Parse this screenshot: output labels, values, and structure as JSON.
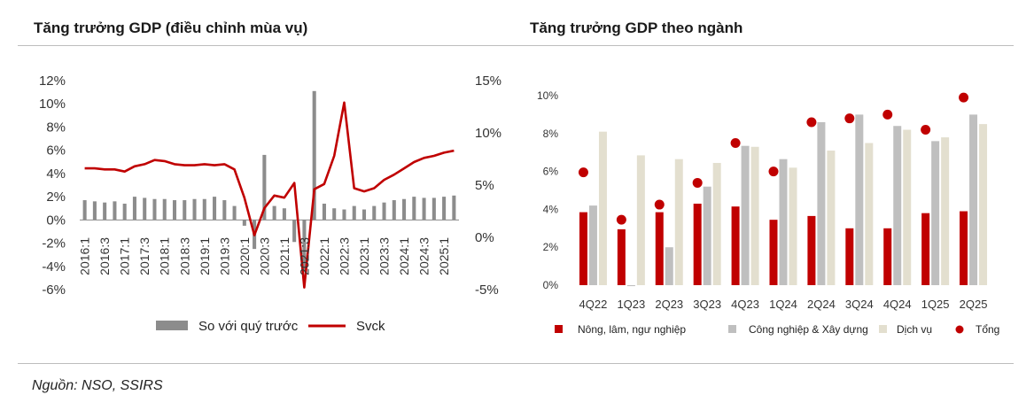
{
  "titles": {
    "left": "Tăng trưởng GDP (điều chỉnh mùa vụ)",
    "right": "Tăng trưởng GDP theo ngành"
  },
  "source": "Nguồn: NSO, SSIRS",
  "colors": {
    "bar_gray": "#8c8c8c",
    "line_red": "#c00000",
    "ag": "#c00000",
    "ind": "#bfbfbf",
    "svc": "#e3dfcf",
    "total": "#c00000"
  },
  "chart_data": [
    {
      "type": "bar+line",
      "categories": [
        "2016:1",
        "2016:2",
        "2016:3",
        "2016:4",
        "2017:1",
        "2017:2",
        "2017:3",
        "2017:4",
        "2018:1",
        "2018:2",
        "2018:3",
        "2018:4",
        "2019:1",
        "2019:2",
        "2019:3",
        "2019:4",
        "2020:1",
        "2020:2",
        "2020:3",
        "2020:4",
        "2021:1",
        "2021:2",
        "2021:3",
        "2021:4",
        "2022:1",
        "2022:2",
        "2022:3",
        "2022:4",
        "2023:1",
        "2023:2",
        "2023:3",
        "2023:4",
        "2024:1",
        "2024:2",
        "2024:3",
        "2024:4",
        "2025:1",
        "2025:2"
      ],
      "tick_labels": [
        "2016:1",
        "2016:3",
        "2017:1",
        "2017:3",
        "2018:1",
        "2018:3",
        "2019:1",
        "2019:3",
        "2020:1",
        "2020:3",
        "2021:1",
        "2021:3",
        "2022:1",
        "2022:3",
        "2023:1",
        "2023:3",
        "2024:1",
        "2024:3",
        "2025:1"
      ],
      "series": [
        {
          "name": "So với quý trước",
          "type": "bar",
          "axis": "left",
          "values": [
            1.7,
            1.6,
            1.5,
            1.6,
            1.4,
            2.0,
            1.9,
            1.8,
            1.8,
            1.7,
            1.7,
            1.8,
            1.8,
            2.0,
            1.7,
            1.2,
            -0.5,
            -2.5,
            5.6,
            1.2,
            1.0,
            -1.9,
            -4.5,
            11.1,
            1.4,
            1.0,
            0.9,
            1.2,
            0.9,
            1.2,
            1.5,
            1.7,
            1.8,
            2.0,
            1.9,
            1.9,
            2.0,
            2.1
          ]
        },
        {
          "name": "Svck",
          "type": "line",
          "axis": "right",
          "values": [
            6.6,
            6.6,
            6.5,
            6.5,
            6.3,
            6.8,
            7.0,
            7.4,
            7.3,
            7.0,
            6.9,
            6.9,
            7.0,
            6.9,
            7.0,
            6.5,
            3.8,
            0.2,
            2.8,
            4.0,
            3.8,
            5.2,
            -4.8,
            4.6,
            5.1,
            7.8,
            12.9,
            4.7,
            4.4,
            4.7,
            5.5,
            6.0,
            6.6,
            7.2,
            7.6,
            7.8,
            8.1,
            8.3
          ]
        }
      ],
      "ylim_left": [
        -6,
        12
      ],
      "yticks_left": [
        "12%",
        "10%",
        "8%",
        "6%",
        "4%",
        "2%",
        "0%",
        "-2%",
        "-4%",
        "-6%"
      ],
      "ylim_right": [
        -5,
        15
      ],
      "yticks_right": [
        "15%",
        "10%",
        "5%",
        "0%",
        "-5%"
      ],
      "legend": [
        "So với quý trước",
        "Svck"
      ],
      "legend_position": "bottom"
    },
    {
      "type": "bar",
      "categories": [
        "4Q22",
        "1Q23",
        "2Q23",
        "3Q23",
        "4Q23",
        "1Q24",
        "2Q24",
        "3Q24",
        "4Q24",
        "1Q25",
        "2Q25"
      ],
      "series": [
        {
          "name": "Nông, lâm, ngư nghiệp",
          "type": "bar",
          "values": [
            3.85,
            2.95,
            3.85,
            4.3,
            4.15,
            3.45,
            3.65,
            3.0,
            3.0,
            3.8,
            3.9
          ]
        },
        {
          "name": "Công nghiệp & Xây dựng",
          "type": "bar",
          "values": [
            4.2,
            -0.05,
            2.0,
            5.2,
            7.35,
            6.65,
            8.6,
            9.0,
            8.4,
            7.6,
            9.0
          ]
        },
        {
          "name": "Dịch vụ",
          "type": "bar",
          "values": [
            8.1,
            6.85,
            6.65,
            6.45,
            7.3,
            6.2,
            7.1,
            7.5,
            8.2,
            7.8,
            8.5
          ]
        },
        {
          "name": "Tổng",
          "type": "scatter",
          "values": [
            5.95,
            3.45,
            4.25,
            5.4,
            7.5,
            6.0,
            8.6,
            8.8,
            9.0,
            8.2,
            9.9
          ]
        }
      ],
      "ylim": [
        0,
        10
      ],
      "yticks": [
        "10%",
        "8%",
        "6%",
        "4%",
        "2%",
        "0%"
      ],
      "legend": [
        "Nông, lâm, ngư nghiệp",
        "Công nghiệp & Xây dựng",
        "Dịch vụ",
        "Tổng"
      ],
      "legend_position": "bottom"
    }
  ]
}
